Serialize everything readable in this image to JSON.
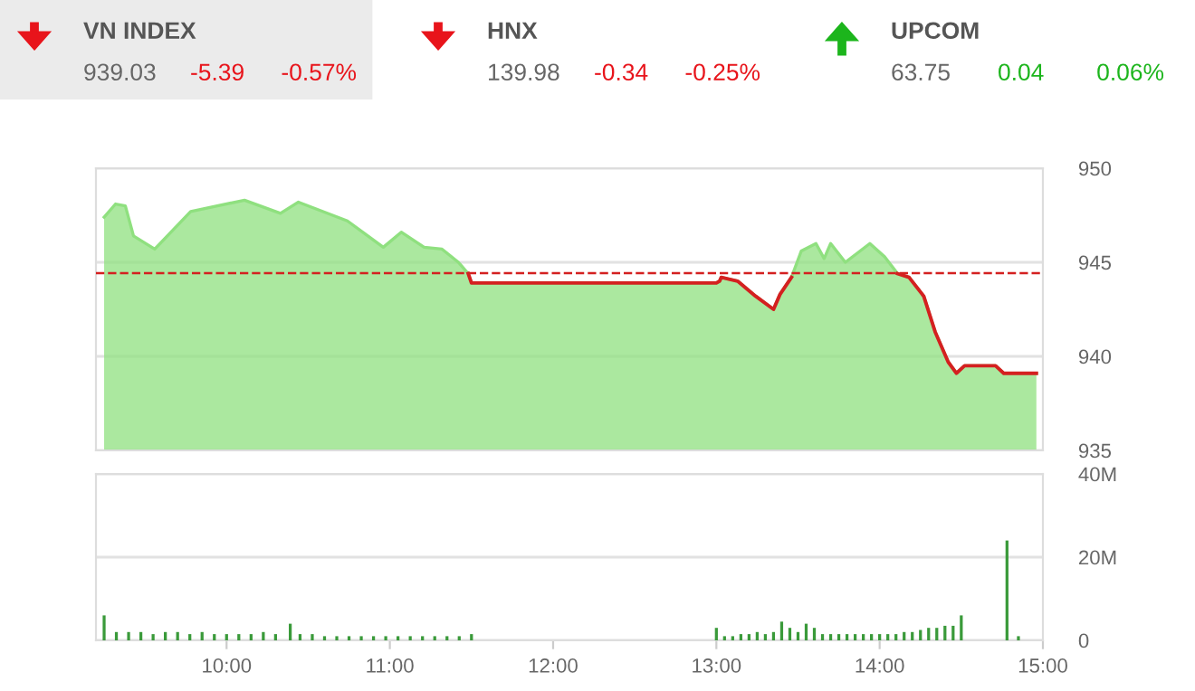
{
  "chart_data": [
    {
      "type": "other",
      "annotations": [
        "VN INDEX",
        "939.03",
        "-5.39",
        "-0.57%",
        "HNX",
        "139.98",
        "-0.34",
        "-0.25%",
        "UPCOM",
        "63.75",
        "0.04",
        "0.06%"
      ],
      "colors": [
        "#e8141b",
        "#e8141b",
        "#1cb51c"
      ]
    },
    {
      "type": "area",
      "tick_labels": "y",
      "grid": "y",
      "xlim": [
        9.2,
        15.0
      ],
      "ylim": [
        935,
        950
      ],
      "yticks": [
        935,
        940,
        945,
        950
      ],
      "series": [
        {
          "color": "#8fe07f",
          "x": [
            9.25,
            9.32,
            9.38,
            9.43,
            9.56,
            9.78,
            10.11,
            10.33,
            10.44,
            10.74,
            10.96,
            11.07,
            11.21,
            11.32,
            11.42,
            11.48,
            11.5,
            13.0,
            13.02,
            13.03,
            13.13,
            13.24,
            13.35,
            13.39,
            13.46,
            13.52,
            13.61,
            13.66,
            13.7,
            13.79,
            13.94,
            14.03,
            14.11,
            14.18,
            14.27,
            14.34,
            14.42,
            14.47,
            14.52,
            14.71,
            14.76,
            14.96
          ],
          "values": [
            947.4,
            948.1,
            948.0,
            946.4,
            945.7,
            947.7,
            948.3,
            947.6,
            948.2,
            947.2,
            945.8,
            946.6,
            945.8,
            945.7,
            945.0,
            944.4,
            943.9,
            943.9,
            944.0,
            944.2,
            944.0,
            943.2,
            942.5,
            943.3,
            944.2,
            945.6,
            946.0,
            945.2,
            946.0,
            945.0,
            946.0,
            945.3,
            944.4,
            944.2,
            943.2,
            941.3,
            939.7,
            939.1,
            939.5,
            939.5,
            939.1,
            939.1
          ]
        },
        {
          "type": "line",
          "color": "#d42020",
          "x": [
            11.48,
            11.5,
            13.0,
            13.02,
            13.03,
            13.13,
            13.24,
            13.35,
            13.39,
            13.46,
            13.79,
            14.11,
            14.18,
            14.27,
            14.34,
            14.42,
            14.47,
            14.52,
            14.71,
            14.76,
            14.96
          ],
          "values": [
            944.4,
            943.9,
            943.9,
            944.0,
            944.2,
            944.0,
            943.2,
            942.5,
            943.3,
            944.2,
            null,
            944.4,
            944.2,
            943.2,
            941.3,
            939.7,
            939.1,
            939.5,
            939.5,
            939.1,
            939.1
          ]
        }
      ],
      "ref_lines": [
        {
          "axis": "y",
          "value": 944.42,
          "color": "#d42020",
          "line_style": "dashed"
        }
      ]
    },
    {
      "type": "bar",
      "grid": "y",
      "xlim": [
        9.2,
        15.0
      ],
      "ylim": [
        0,
        40
      ],
      "xticks": [
        {
          "value": 10,
          "label": "10:00"
        },
        {
          "value": 11,
          "label": "11:00"
        },
        {
          "value": 12,
          "label": "12:00"
        },
        {
          "value": 13,
          "label": "13:00"
        },
        {
          "value": 14,
          "label": "14:00"
        },
        {
          "value": 15,
          "label": "15:00"
        }
      ],
      "yticks": [
        0,
        {
          "value": 20,
          "label": "20M"
        },
        {
          "value": 40,
          "label": "40M"
        }
      ],
      "series": [
        {
          "color": "#3a9a3a",
          "x": [
            9.25,
            9.325,
            9.4,
            9.475,
            9.55,
            9.625,
            9.7,
            9.775,
            9.85,
            9.925,
            10.0,
            10.075,
            10.15,
            10.225,
            10.3,
            10.39,
            10.45,
            10.525,
            10.6,
            10.675,
            10.75,
            10.825,
            10.9,
            10.975,
            11.05,
            11.125,
            11.2,
            11.275,
            11.35,
            11.425,
            11.5,
            13.0,
            13.05,
            13.1,
            13.15,
            13.2,
            13.25,
            13.3,
            13.35,
            13.4,
            13.45,
            13.5,
            13.55,
            13.6,
            13.65,
            13.7,
            13.75,
            13.8,
            13.85,
            13.9,
            13.95,
            14.0,
            14.05,
            14.1,
            14.15,
            14.2,
            14.25,
            14.3,
            14.35,
            14.4,
            14.45,
            14.5,
            14.78,
            14.85
          ],
          "values": [
            6,
            2,
            2,
            2,
            1.5,
            2,
            2,
            1.5,
            2,
            1.5,
            1.5,
            1.5,
            1.5,
            2,
            1.5,
            4,
            1.5,
            1.5,
            1,
            1,
            1,
            1,
            1,
            1,
            1,
            1,
            1,
            1,
            1,
            1,
            1.5,
            3,
            1,
            1,
            1.5,
            1.5,
            2,
            1.5,
            2,
            4.5,
            3,
            2,
            4,
            3,
            1.5,
            1.5,
            1.5,
            1.5,
            1.5,
            1.5,
            1.5,
            1.5,
            1.5,
            1.5,
            2,
            2,
            2.5,
            3,
            3,
            3.5,
            3.5,
            6,
            24,
            1
          ]
        }
      ]
    }
  ]
}
